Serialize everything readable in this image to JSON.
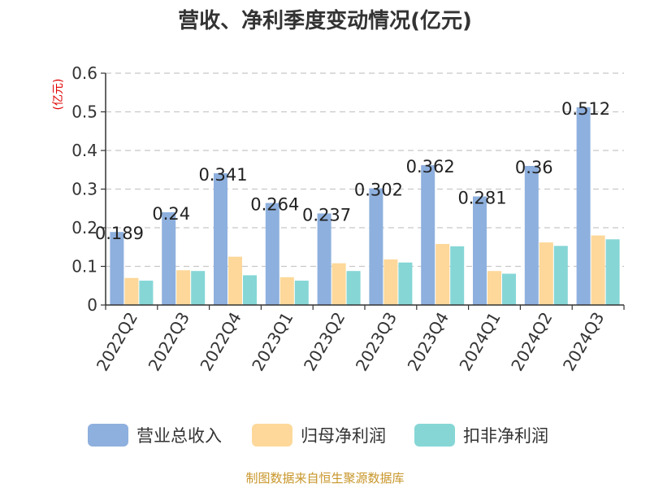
{
  "chart_data": {
    "type": "bar",
    "title": "营收、净利季度变动情况(亿元)",
    "ylabel": "(亿元)",
    "xlabel": "",
    "ylim": [
      0,
      0.6
    ],
    "yticks": [
      "0",
      "0.1",
      "0.2",
      "0.3",
      "0.4",
      "0.5",
      "0.6"
    ],
    "grid": true,
    "legend_position": "bottom",
    "categories": [
      "2022Q2",
      "2022Q3",
      "2022Q4",
      "2023Q1",
      "2023Q2",
      "2023Q3",
      "2023Q4",
      "2024Q1",
      "2024Q2",
      "2024Q3"
    ],
    "series": [
      {
        "name": "营业总收入",
        "color": "#8eb0de",
        "values": [
          0.189,
          0.24,
          0.341,
          0.264,
          0.237,
          0.302,
          0.362,
          0.281,
          0.36,
          0.512
        ],
        "labels": [
          "0.189",
          "0.24",
          "0.341",
          "0.264",
          "0.237",
          "0.302",
          "0.362",
          "0.281",
          "0.36",
          "0.512"
        ]
      },
      {
        "name": "归母净利润",
        "color": "#fdd89a",
        "values": [
          0.07,
          0.09,
          0.125,
          0.072,
          0.108,
          0.118,
          0.158,
          0.088,
          0.162,
          0.18
        ]
      },
      {
        "name": "扣非净利润",
        "color": "#86d6d6",
        "values": [
          0.063,
          0.088,
          0.077,
          0.063,
          0.088,
          0.11,
          0.152,
          0.081,
          0.153,
          0.17
        ]
      }
    ]
  },
  "footer": {
    "source": "制图数据来自恒生聚源数据库"
  }
}
